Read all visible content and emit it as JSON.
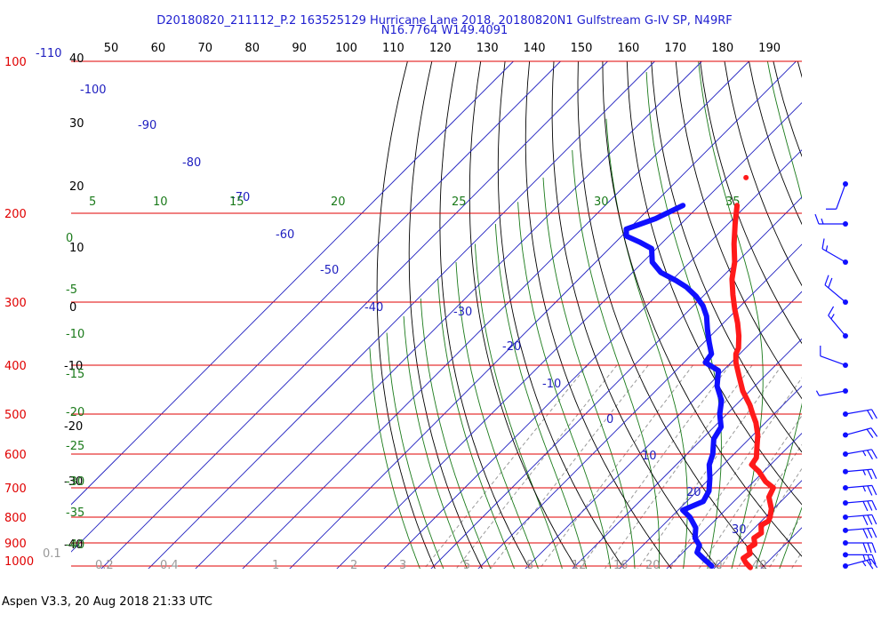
{
  "header": {
    "title_line1": "D20180820_211112_P.2 163525129 Hurricane Lane 2018, 20180820N1 Gulfstream G-IV SP, N49RF",
    "title_line2": "N16.7764 W149.4091"
  },
  "footer": {
    "text": "Aspen V3.3, 20 Aug 2018  21:33 UTC"
  },
  "colors": {
    "isobar": "#e00000",
    "temperature": "#ff1a1a",
    "dewpoint": "#1010ff",
    "isotherm": "#2020c0",
    "dry_adiabat": "#000000",
    "moist_adiabat": "#1a7a1a",
    "mixing_ratio": "#999999",
    "wind_barb": "#1010ff"
  },
  "chart_data": {
    "type": "skew-t",
    "pressure_levels_hpa": [
      "100",
      "200",
      "300",
      "400",
      "500",
      "600",
      "700",
      "800",
      "900",
      "1000"
    ],
    "top_left_label": "-110",
    "top_axis_labels": [
      "50",
      "60",
      "70",
      "80",
      "90",
      "100",
      "110",
      "120",
      "130",
      "140",
      "150",
      "160",
      "170",
      "180",
      "190"
    ],
    "left_axis_labels": [
      "40",
      "30",
      "20",
      "10",
      "0",
      "-10",
      "-20",
      "-30",
      "-40"
    ],
    "isotherm_labels": [
      "-100",
      "-90",
      "-80",
      "-70",
      "-60",
      "-50",
      "-40",
      "-30",
      "-20",
      "-10",
      "0",
      "10",
      "20",
      "30"
    ],
    "moist_adiabat_top_labels": [
      "5",
      "10",
      "15",
      "20",
      "25",
      "30",
      "35"
    ],
    "moist_adiabat_left_labels": [
      "0",
      "-5",
      "-10",
      "-15",
      "-20",
      "-25",
      "-30",
      "-35",
      "-40"
    ],
    "mixing_ratio_labels": [
      "0.1",
      "0.2",
      "0.4",
      "1",
      "2",
      "3",
      "5",
      "8",
      "12",
      "16",
      "20",
      "30",
      "40"
    ],
    "temperature_profile": [
      {
        "p": 170,
        "t": -56.0
      },
      {
        "p": 193,
        "t": -52.0
      },
      {
        "p": 210,
        "t": -48.5
      },
      {
        "p": 230,
        "t": -44.5
      },
      {
        "p": 250,
        "t": -40.5
      },
      {
        "p": 270,
        "t": -37.5
      },
      {
        "p": 290,
        "t": -34.0
      },
      {
        "p": 310,
        "t": -30.5
      },
      {
        "p": 330,
        "t": -27.0
      },
      {
        "p": 350,
        "t": -24.0
      },
      {
        "p": 370,
        "t": -21.5
      },
      {
        "p": 380,
        "t": -20.8
      },
      {
        "p": 395,
        "t": -19.0
      },
      {
        "p": 420,
        "t": -15.5
      },
      {
        "p": 450,
        "t": -11.5
      },
      {
        "p": 480,
        "t": -7.0
      },
      {
        "p": 500,
        "t": -4.5
      },
      {
        "p": 520,
        "t": -2.0
      },
      {
        "p": 550,
        "t": 1.0
      },
      {
        "p": 580,
        "t": 3.3
      },
      {
        "p": 610,
        "t": 5.5
      },
      {
        "p": 630,
        "t": 6.0
      },
      {
        "p": 650,
        "t": 9.0
      },
      {
        "p": 680,
        "t": 12.5
      },
      {
        "p": 700,
        "t": 15.5
      },
      {
        "p": 730,
        "t": 16.5
      },
      {
        "p": 770,
        "t": 19.5
      },
      {
        "p": 800,
        "t": 21.0
      },
      {
        "p": 815,
        "t": 21.5
      },
      {
        "p": 830,
        "t": 20.8
      },
      {
        "p": 860,
        "t": 22.5
      },
      {
        "p": 880,
        "t": 22.0
      },
      {
        "p": 905,
        "t": 23.5
      },
      {
        "p": 920,
        "t": 23.0
      },
      {
        "p": 945,
        "t": 24.5
      },
      {
        "p": 965,
        "t": 24.0
      },
      {
        "p": 985,
        "t": 25.5
      },
      {
        "p": 1007,
        "t": 27.5
      }
    ],
    "dewpoint_profile": [
      {
        "p": 193,
        "t": -63.5
      },
      {
        "p": 205,
        "t": -66.5
      },
      {
        "p": 215,
        "t": -70.5
      },
      {
        "p": 222,
        "t": -69.0
      },
      {
        "p": 228,
        "t": -65.0
      },
      {
        "p": 235,
        "t": -61.0
      },
      {
        "p": 250,
        "t": -58.0
      },
      {
        "p": 262,
        "t": -54.0
      },
      {
        "p": 272,
        "t": -49.0
      },
      {
        "p": 280,
        "t": -45.5
      },
      {
        "p": 292,
        "t": -41.5
      },
      {
        "p": 305,
        "t": -38.0
      },
      {
        "p": 320,
        "t": -35.0
      },
      {
        "p": 340,
        "t": -32.0
      },
      {
        "p": 360,
        "t": -29.0
      },
      {
        "p": 380,
        "t": -26.0
      },
      {
        "p": 395,
        "t": -25.5
      },
      {
        "p": 410,
        "t": -21.0
      },
      {
        "p": 440,
        "t": -18.0
      },
      {
        "p": 470,
        "t": -14.0
      },
      {
        "p": 500,
        "t": -11.5
      },
      {
        "p": 530,
        "t": -8.5
      },
      {
        "p": 560,
        "t": -7.5
      },
      {
        "p": 600,
        "t": -4.5
      },
      {
        "p": 630,
        "t": -3.0
      },
      {
        "p": 670,
        "t": 0.0
      },
      {
        "p": 710,
        "t": 2.5
      },
      {
        "p": 745,
        "t": 3.5
      },
      {
        "p": 775,
        "t": 1.0
      },
      {
        "p": 800,
        "t": 4.0
      },
      {
        "p": 840,
        "t": 7.5
      },
      {
        "p": 880,
        "t": 9.5
      },
      {
        "p": 910,
        "t": 12.0
      },
      {
        "p": 940,
        "t": 13.0
      },
      {
        "p": 970,
        "t": 16.0
      },
      {
        "p": 1000,
        "t": 19.0
      }
    ],
    "wind_barbs": [
      {
        "p": 175,
        "dir": 200,
        "spd": 10
      },
      {
        "p": 210,
        "dir": 270,
        "spd": 15
      },
      {
        "p": 250,
        "dir": 300,
        "spd": 15
      },
      {
        "p": 300,
        "dir": 310,
        "spd": 20
      },
      {
        "p": 350,
        "dir": 320,
        "spd": 15
      },
      {
        "p": 400,
        "dir": 290,
        "spd": 10
      },
      {
        "p": 450,
        "dir": 260,
        "spd": 5
      },
      {
        "p": 500,
        "dir": 80,
        "spd": 20
      },
      {
        "p": 550,
        "dir": 75,
        "spd": 20
      },
      {
        "p": 600,
        "dir": 80,
        "spd": 25
      },
      {
        "p": 650,
        "dir": 85,
        "spd": 25
      },
      {
        "p": 700,
        "dir": 85,
        "spd": 25
      },
      {
        "p": 750,
        "dir": 85,
        "spd": 30
      },
      {
        "p": 800,
        "dir": 85,
        "spd": 30
      },
      {
        "p": 850,
        "dir": 85,
        "spd": 30
      },
      {
        "p": 900,
        "dir": 90,
        "spd": 30
      },
      {
        "p": 950,
        "dir": 90,
        "spd": 25
      },
      {
        "p": 1000,
        "dir": 75,
        "spd": 25
      }
    ]
  }
}
